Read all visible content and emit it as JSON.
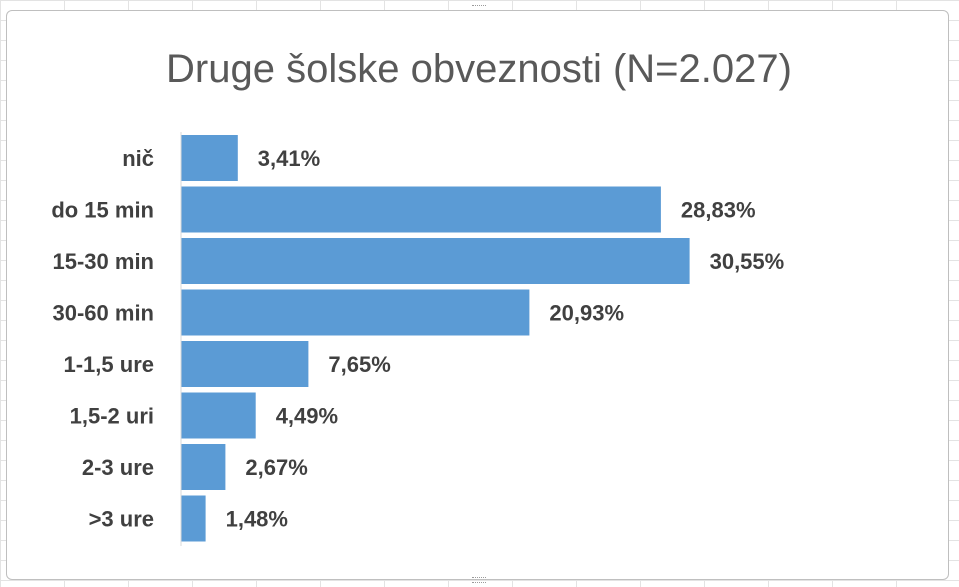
{
  "chart_data": {
    "type": "bar",
    "orientation": "horizontal",
    "title": "Druge šolske obveznosti (N=2.027)",
    "categories": [
      "nič",
      "do 15 min",
      "15-30 min",
      "30-60 min",
      "1-1,5 ure",
      "1,5-2 uri",
      "2-3 ure",
      ">3 ure"
    ],
    "values": [
      3.41,
      28.83,
      30.55,
      20.93,
      7.65,
      4.49,
      2.67,
      1.48
    ],
    "value_labels": [
      "3,41%",
      "28,83%",
      "30,55%",
      "20,93%",
      "7,65%",
      "4,49%",
      "2,67%",
      "1,48%"
    ],
    "xlim": [
      0,
      34
    ],
    "grid": false,
    "legend": "none",
    "bar_color": "#5B9BD5"
  }
}
